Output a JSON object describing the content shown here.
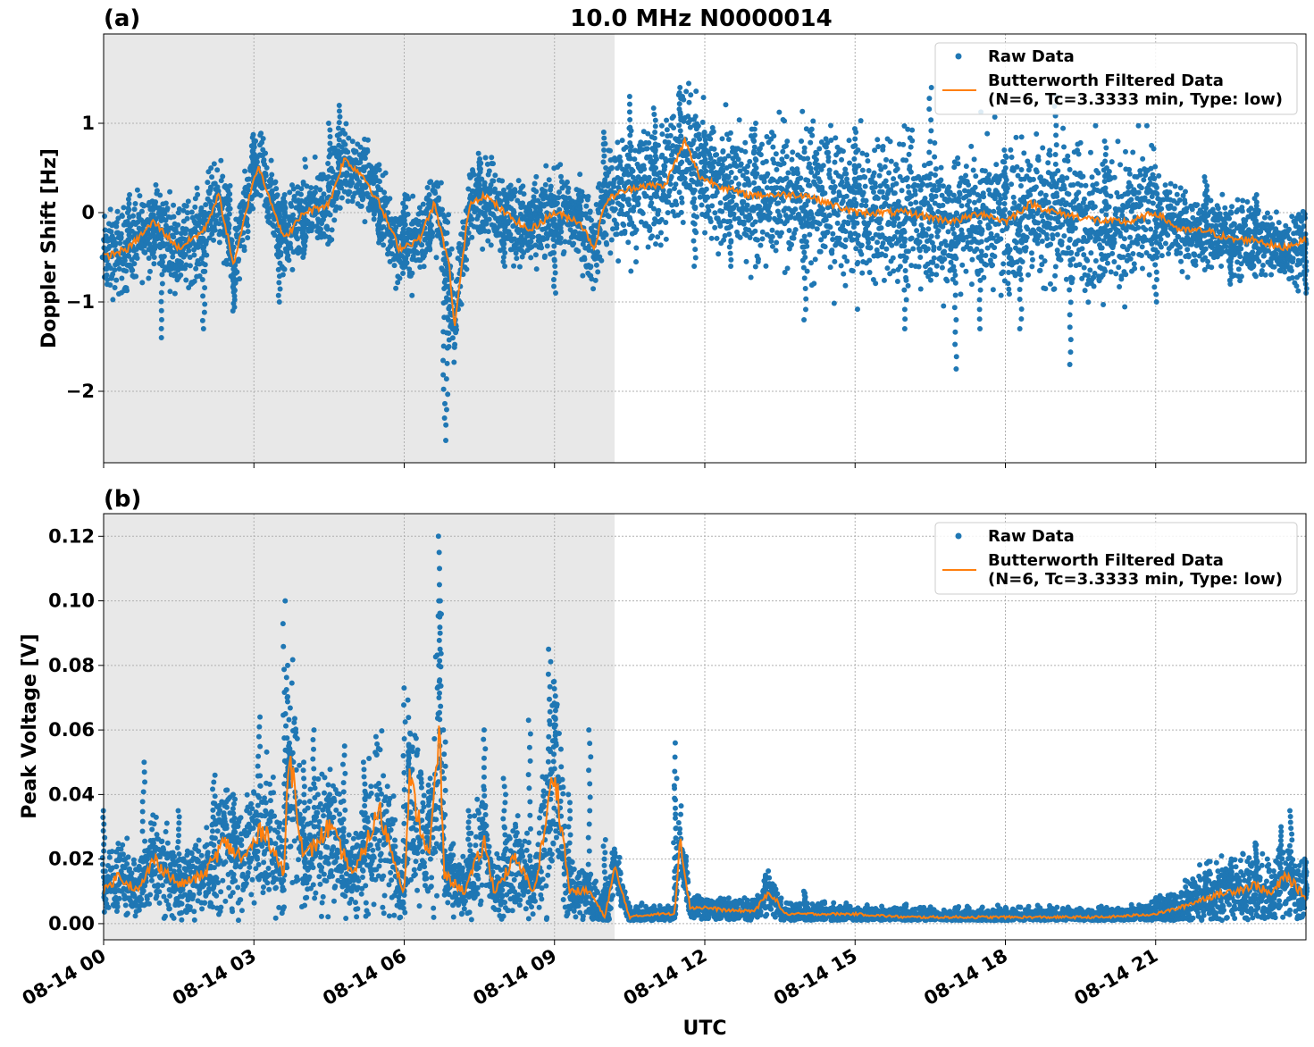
{
  "figure": {
    "title": "10.0 MHz N0000014",
    "xlabel": "UTC",
    "x_ticks": [
      "08-14 00",
      "08-14 03",
      "08-14 06",
      "08-14 09",
      "08-14 12",
      "08-14 15",
      "08-14 18",
      "08-14 21"
    ],
    "night_shading_end": "08-14 10:12",
    "colors": {
      "raw": "#1f77b4",
      "filtered": "#ff7f0e",
      "shade": "#e8e8e8",
      "grid": "#b0b0b0"
    }
  },
  "legend": {
    "raw": "Raw Data",
    "filtered_line1": "Butterworth Filtered Data",
    "filtered_line2": "(N=6, Tc=3.3333 min, Type: low)",
    "placement": "upper right"
  },
  "chart_data": [
    {
      "type": "scatter",
      "panel_label": "(a)",
      "ylabel": "Doppler Shift [Hz]",
      "ylim": [
        -2.8,
        2.0
      ],
      "xlim_hours": [
        0,
        24
      ],
      "y_ticks": [
        "1",
        "0",
        "−1",
        "−2"
      ],
      "grid": true,
      "series": [
        {
          "name": "Butterworth Filtered Data",
          "style": "line",
          "x_hours": [
            0.0,
            0.5,
            1.0,
            1.5,
            2.0,
            2.3,
            2.6,
            3.0,
            3.1,
            3.3,
            3.6,
            4.0,
            4.5,
            4.8,
            5.2,
            5.5,
            5.9,
            6.3,
            6.6,
            6.9,
            7.0,
            7.3,
            7.6,
            8.0,
            8.5,
            9.0,
            9.5,
            9.8,
            10.0,
            10.2,
            10.7,
            11.2,
            11.6,
            11.9,
            12.3,
            12.8,
            13.3,
            14.0,
            14.5,
            15.0,
            16.0,
            17.0,
            17.5,
            18.0,
            18.5,
            19.0,
            20.0,
            20.5,
            21.0,
            21.5,
            22.0,
            22.5,
            23.0,
            23.5,
            24.0
          ],
          "y": [
            -0.5,
            -0.4,
            -0.1,
            -0.4,
            -0.2,
            0.2,
            -0.6,
            0.4,
            0.5,
            0.2,
            -0.3,
            0.0,
            0.1,
            0.6,
            0.4,
            0.1,
            -0.4,
            -0.3,
            0.1,
            -0.6,
            -1.3,
            0.1,
            0.2,
            0.0,
            -0.2,
            0.0,
            -0.1,
            -0.4,
            0.1,
            0.2,
            0.3,
            0.3,
            0.8,
            0.4,
            0.3,
            0.2,
            0.2,
            0.2,
            0.1,
            0.0,
            0.0,
            -0.1,
            0.0,
            -0.1,
            0.1,
            0.0,
            -0.1,
            -0.1,
            0.0,
            -0.2,
            -0.2,
            -0.3,
            -0.3,
            -0.4,
            -0.3
          ]
        },
        {
          "name": "Raw Data",
          "style": "markers",
          "x_hours": [
            0.0,
            0.5,
            1.0,
            1.15,
            1.5,
            2.0,
            2.5,
            2.6,
            3.0,
            3.5,
            3.6,
            4.0,
            4.5,
            4.7,
            4.9,
            5.5,
            6.0,
            6.5,
            6.8,
            6.85,
            6.9,
            7.5,
            8.0,
            8.5,
            9.0,
            9.5,
            10.0,
            10.5,
            11.0,
            11.5,
            11.8,
            12.0,
            12.5,
            13.0,
            14.0,
            15.0,
            16.0,
            16.5,
            17.0,
            17.5,
            18.0,
            18.3,
            19.0,
            19.3,
            20.0,
            21.0,
            22.0,
            22.5,
            23.0,
            23.5,
            24.0
          ],
          "y": [
            -0.5,
            0.2,
            -0.5,
            -1.4,
            -0.3,
            -1.3,
            0.3,
            -1.1,
            0.8,
            -1.0,
            0.2,
            -0.5,
            1.0,
            1.2,
            0.6,
            -0.3,
            0.2,
            -0.4,
            -2.3,
            -2.55,
            -1.5,
            0.6,
            -0.6,
            0.1,
            -0.9,
            0.2,
            0.9,
            1.3,
            1.1,
            1.4,
            -0.6,
            0.9,
            -0.6,
            1.0,
            -1.2,
            0.9,
            -1.3,
            1.4,
            -1.75,
            -1.3,
            0.7,
            -1.3,
            1.3,
            -1.7,
            0.8,
            -1.0,
            0.4,
            -0.8,
            0.2,
            -0.6,
            -0.9
          ]
        }
      ]
    },
    {
      "type": "scatter",
      "panel_label": "(b)",
      "ylabel": "Peak Voltage [V]",
      "ylim": [
        -0.005,
        0.127
      ],
      "xlim_hours": [
        0,
        24
      ],
      "y_ticks": [
        "0.00",
        "0.02",
        "0.04",
        "0.06",
        "0.08",
        "0.10",
        "0.12"
      ],
      "grid": true,
      "series": [
        {
          "name": "Butterworth Filtered Data",
          "style": "line",
          "x_hours": [
            0.0,
            0.3,
            0.7,
            1.0,
            1.5,
            2.0,
            2.4,
            2.8,
            3.2,
            3.6,
            3.7,
            4.0,
            4.5,
            5.0,
            5.5,
            6.0,
            6.1,
            6.5,
            6.7,
            6.8,
            7.2,
            7.6,
            7.8,
            8.2,
            8.6,
            9.0,
            9.3,
            9.7,
            10.0,
            10.2,
            10.5,
            11.0,
            11.4,
            11.5,
            11.7,
            12.0,
            12.5,
            13.0,
            13.3,
            13.6,
            14.0,
            15.0,
            16.0,
            17.0,
            18.0,
            19.0,
            20.0,
            21.0,
            21.5,
            22.0,
            22.5,
            23.0,
            23.3,
            23.6,
            24.0
          ],
          "y": [
            0.01,
            0.015,
            0.01,
            0.02,
            0.012,
            0.015,
            0.025,
            0.02,
            0.03,
            0.015,
            0.055,
            0.02,
            0.03,
            0.015,
            0.035,
            0.01,
            0.044,
            0.02,
            0.06,
            0.015,
            0.01,
            0.025,
            0.01,
            0.02,
            0.01,
            0.048,
            0.01,
            0.01,
            0.002,
            0.017,
            0.002,
            0.003,
            0.003,
            0.028,
            0.005,
            0.005,
            0.004,
            0.004,
            0.01,
            0.003,
            0.003,
            0.003,
            0.002,
            0.002,
            0.002,
            0.002,
            0.002,
            0.003,
            0.005,
            0.008,
            0.01,
            0.012,
            0.009,
            0.015,
            0.008
          ]
        },
        {
          "name": "Raw Data",
          "style": "markers",
          "x_hours": [
            0.0,
            0.8,
            1.0,
            1.5,
            2.2,
            2.6,
            3.1,
            3.6,
            3.65,
            3.7,
            4.0,
            4.2,
            4.5,
            4.8,
            5.2,
            6.0,
            6.1,
            6.5,
            6.7,
            6.72,
            6.8,
            7.3,
            7.6,
            8.0,
            8.5,
            8.9,
            9.0,
            9.3,
            9.7,
            10.0,
            11.4,
            11.42,
            11.6,
            13.2,
            14.0,
            16.0,
            18.0,
            20.0,
            21.0,
            22.0,
            22.5,
            23.0,
            23.5,
            23.7,
            24.0
          ],
          "y": [
            0.035,
            0.05,
            0.02,
            0.035,
            0.046,
            0.04,
            0.064,
            0.1,
            0.08,
            0.045,
            0.05,
            0.06,
            0.04,
            0.055,
            0.05,
            0.073,
            0.055,
            0.045,
            0.12,
            0.1,
            0.06,
            0.035,
            0.06,
            0.045,
            0.063,
            0.085,
            0.075,
            0.04,
            0.06,
            0.026,
            0.056,
            0.045,
            0.02,
            0.015,
            0.01,
            0.006,
            0.005,
            0.005,
            0.008,
            0.015,
            0.02,
            0.025,
            0.03,
            0.035,
            0.02
          ]
        }
      ]
    }
  ]
}
